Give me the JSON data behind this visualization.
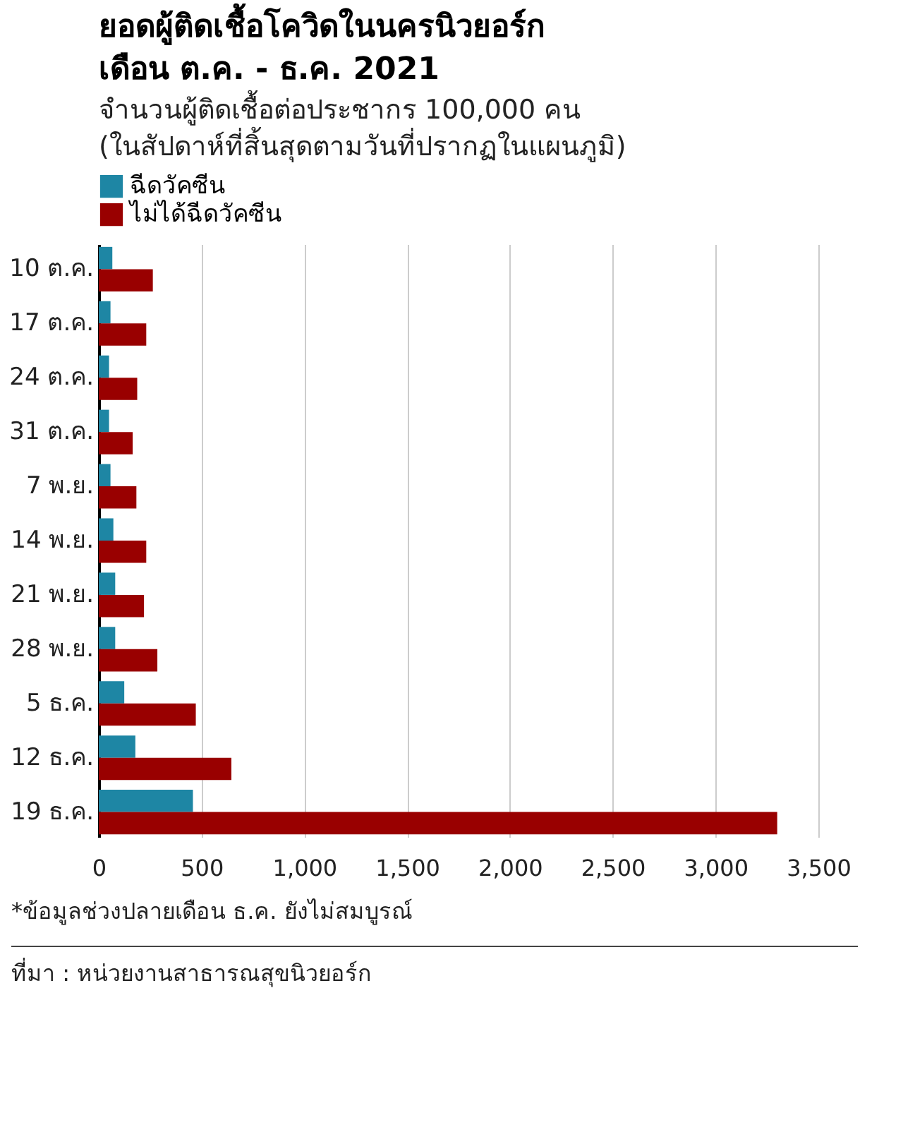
{
  "chart_data": {
    "type": "bar",
    "orientation": "horizontal",
    "title": [
      "ยอดผู้ติดเชื้อโควิดในนครนิวยอร์ก",
      "เดือน ต.ค. - ธ.ค. 2021"
    ],
    "subtitle": [
      "จำนวนผู้ติดเชื้อต่อประชากร 100,000 คน",
      "(ในสัปดาห์ที่สิ้นสุดตามวันที่ปรากฏในแผนภูมิ)"
    ],
    "categories": [
      "10 ต.ค.",
      "17 ต.ค.",
      "24 ต.ค.",
      "31 ต.ค.",
      "7 พ.ย.",
      "14 พ.ย.",
      "21 พ.ย.",
      "28 พ.ย.",
      "5 ธ.ค.",
      "12 ธ.ค.",
      "19 ธ.ค."
    ],
    "series": [
      {
        "name": "ฉีดวัคซีน",
        "color": "#1e86a4",
        "values": [
          66,
          57,
          50,
          50,
          57,
          71,
          80,
          80,
          124,
          178,
          458
        ]
      },
      {
        "name": "ไม่ได้ฉีดวัคซีน",
        "color": "#990000",
        "values": [
          263,
          231,
          187,
          165,
          183,
          231,
          220,
          285,
          472,
          645,
          3300
        ]
      }
    ],
    "xlim": [
      0,
      3500
    ],
    "xticks": [
      0,
      {
        "value": 500,
        "label": "500"
      },
      {
        "value": 1000,
        "label": "1,000"
      },
      {
        "value": 1500,
        "label": "1,500"
      },
      {
        "value": 2000,
        "label": "2,000"
      },
      {
        "value": 2500,
        "label": "2,500"
      },
      {
        "value": 3000,
        "label": "3,000"
      },
      {
        "value": 3500,
        "label": "3,500"
      }
    ],
    "grid": "x",
    "legend": "top left",
    "annotations": [
      "*ข้อมูลช่วงปลายเดือน ธ.ค. ยังไม่สมบูรณ์",
      "ที่มา : หน่วยงานสาธารณสุขนิวยอร์ก"
    ]
  }
}
